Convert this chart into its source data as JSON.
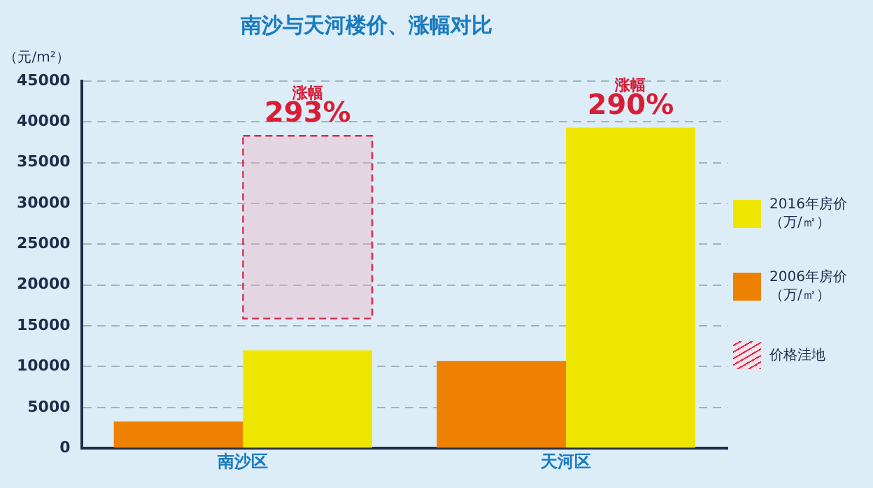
{
  "chart_data": {
    "type": "bar",
    "title": "南沙与天河楼价、涨幅对比",
    "ylabel": "（元/m²）",
    "categories": [
      "南沙区",
      "天河区"
    ],
    "series": [
      {
        "name": "2006年房价（万/㎡）",
        "color": "#ee8200",
        "values": [
          3300,
          10700
        ]
      },
      {
        "name": "2016年房价（万/㎡）",
        "color": "#eee600",
        "values": [
          12000,
          39300
        ]
      },
      {
        "name": "价格洼地",
        "color": "#d92a4a",
        "base": [
          15900,
          null
        ],
        "values": [
          22400,
          null
        ]
      }
    ],
    "ylim": [
      0,
      45000
    ],
    "yticks": [
      0,
      5000,
      10000,
      15000,
      20000,
      25000,
      30000,
      35000,
      40000,
      45000
    ],
    "grid": "y",
    "legend": "right",
    "annotations": [
      "涨幅\n293%",
      "涨幅\n290%"
    ]
  }
}
